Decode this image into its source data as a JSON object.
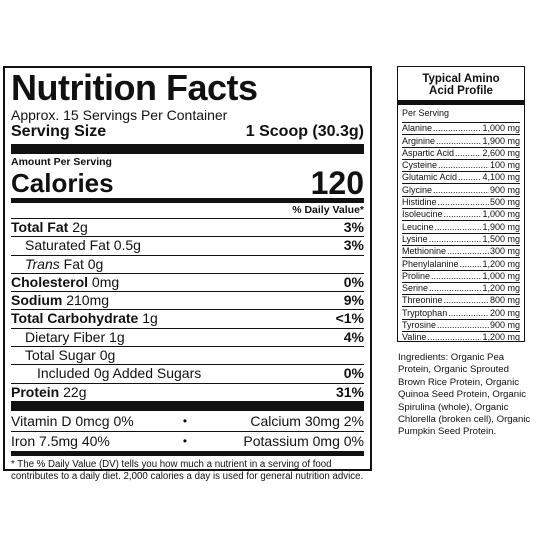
{
  "nutrition": {
    "title": "Nutrition Facts",
    "servings_per_container": "Approx. 15 Servings Per Container",
    "serving_size_label": "Serving Size",
    "serving_size_value": "1 Scoop (30.3g)",
    "amount_per_serving": "Amount Per Serving",
    "calories_label": "Calories",
    "calories_value": "120",
    "daily_value_header": "% Daily Value*",
    "rows": [
      {
        "label": "Total Fat",
        "amount": "2g",
        "dv": "3%"
      },
      {
        "label": "Saturated Fat",
        "amount": "0.5g",
        "dv": "3%"
      },
      {
        "label": "Trans",
        "amount": "Fat 0g",
        "dv": ""
      },
      {
        "label": "Cholesterol",
        "amount": "0mg",
        "dv": "0%"
      },
      {
        "label": "Sodium",
        "amount": "210mg",
        "dv": "9%"
      },
      {
        "label": "Total Carbohydrate",
        "amount": "1g",
        "dv": "<1%"
      },
      {
        "label": "Dietary Fiber",
        "amount": "1g",
        "dv": "4%"
      },
      {
        "label": "Total Sugar",
        "amount": "0g",
        "dv": ""
      },
      {
        "label": "Included 0g Added Sugars",
        "amount": "",
        "dv": "0%"
      },
      {
        "label": "Protein",
        "amount": "22g",
        "dv": "31%"
      }
    ],
    "vitamins": [
      {
        "left": "Vitamin D 0mcg 0%",
        "dot": "•",
        "right": "Calcium 30mg 2%"
      },
      {
        "left": "Iron 7.5mg 40%",
        "dot": "•",
        "right": "Potassium 0mg 0%"
      }
    ],
    "footnote": "* The % Daily Value (DV) tells you how much a nutrient in a serving of food contributes to a daily diet. 2,000 calories a day is used for general nutrition advice."
  },
  "amino": {
    "title_line1": "Typical Amino",
    "title_line2": "Acid Profile",
    "per_serving": "Per Serving",
    "items": [
      {
        "name": "Alanine",
        "amount": "1,000 mg"
      },
      {
        "name": "Arginine",
        "amount": "1,900 mg"
      },
      {
        "name": "Aspartic Acid",
        "amount": "2,600 mg"
      },
      {
        "name": "Cysteine",
        "amount": "100 mg"
      },
      {
        "name": "Glutamic Acid",
        "amount": "4,100 mg"
      },
      {
        "name": "Glycine",
        "amount": "900 mg"
      },
      {
        "name": "Histidine",
        "amount": "500 mg"
      },
      {
        "name": "Isoleucine",
        "amount": "1,000 mg"
      },
      {
        "name": "Leucine",
        "amount": "1,900 mg"
      },
      {
        "name": "Lysine",
        "amount": "1,500 mg"
      },
      {
        "name": "Methionine",
        "amount": "300 mg"
      },
      {
        "name": "Phenylalanine",
        "amount": "1,200 mg"
      },
      {
        "name": "Proline",
        "amount": "1,000 mg"
      },
      {
        "name": "Serine",
        "amount": "1,200 mg"
      },
      {
        "name": "Threonine",
        "amount": "800 mg"
      },
      {
        "name": "Tryptophan",
        "amount": "200 mg"
      },
      {
        "name": "Tyrosine",
        "amount": "900 mg"
      },
      {
        "name": "Valine",
        "amount": "1,200 mg"
      }
    ]
  },
  "ingredients": "Ingredients: Organic Pea Protein, Organic Sprouted Brown Rice Protein, Organic Quinoa Seed Protein, Organic Spirulina (whole), Organic Chlorella (broken cell), Organic Pumpkin Seed Protein."
}
